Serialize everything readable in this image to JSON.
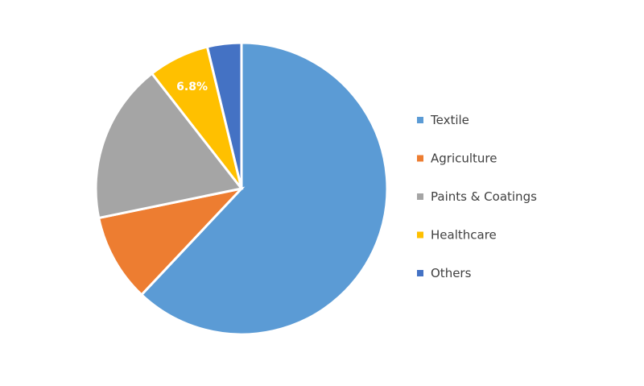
{
  "chart_data": {
    "type": "pie",
    "title": "",
    "categories": [
      "Textile",
      "Agriculture",
      "Paints & Coatings",
      "Healthcare",
      "Others"
    ],
    "values": [
      62.4,
      9.8,
      17.8,
      6.8,
      3.8
    ],
    "colors": [
      "#5b9bd5",
      "#ed7d31",
      "#a5a5a5",
      "#ffc000",
      "#4472c4"
    ],
    "data_labels": [
      {
        "category": "Healthcare",
        "text": "6.8%"
      }
    ],
    "start_angle_deg": 0,
    "direction": "clockwise",
    "legend": {
      "position": "right",
      "entries": [
        "Textile",
        "Agriculture",
        "Paints & Coatings",
        "Healthcare",
        "Others"
      ]
    }
  }
}
